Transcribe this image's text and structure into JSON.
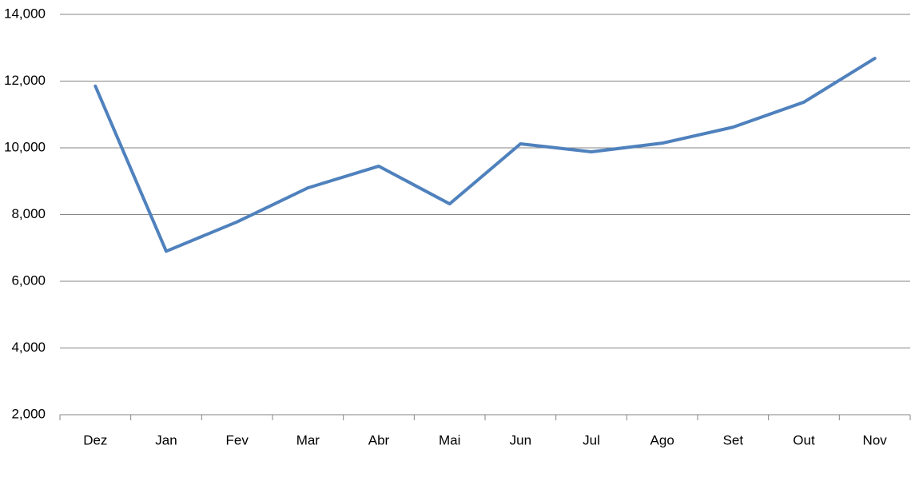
{
  "chart_data": {
    "type": "line",
    "categories": [
      "Dez",
      "Jan",
      "Fev",
      "Mar",
      "Abr",
      "Mai",
      "Jun",
      "Jul",
      "Ago",
      "Set",
      "Out",
      "Nov"
    ],
    "series": [
      {
        "color": "#4f81bd",
        "values": [
          11850,
          6900,
          7780,
          8800,
          9450,
          8320,
          10120,
          9880,
          10140,
          10620,
          11370,
          12680
        ]
      }
    ],
    "ylim": [
      2000,
      14000
    ],
    "yticks": [
      {
        "value": 2000,
        "label": "2,000"
      },
      {
        "value": 4000,
        "label": "4,000"
      },
      {
        "value": 6000,
        "label": "6,000"
      },
      {
        "value": 8000,
        "label": "8,000"
      },
      {
        "value": 10000,
        "label": "10,000"
      },
      {
        "value": 12000,
        "label": "12,000"
      },
      {
        "value": 14000,
        "label": "14,000"
      }
    ],
    "grid": true
  }
}
